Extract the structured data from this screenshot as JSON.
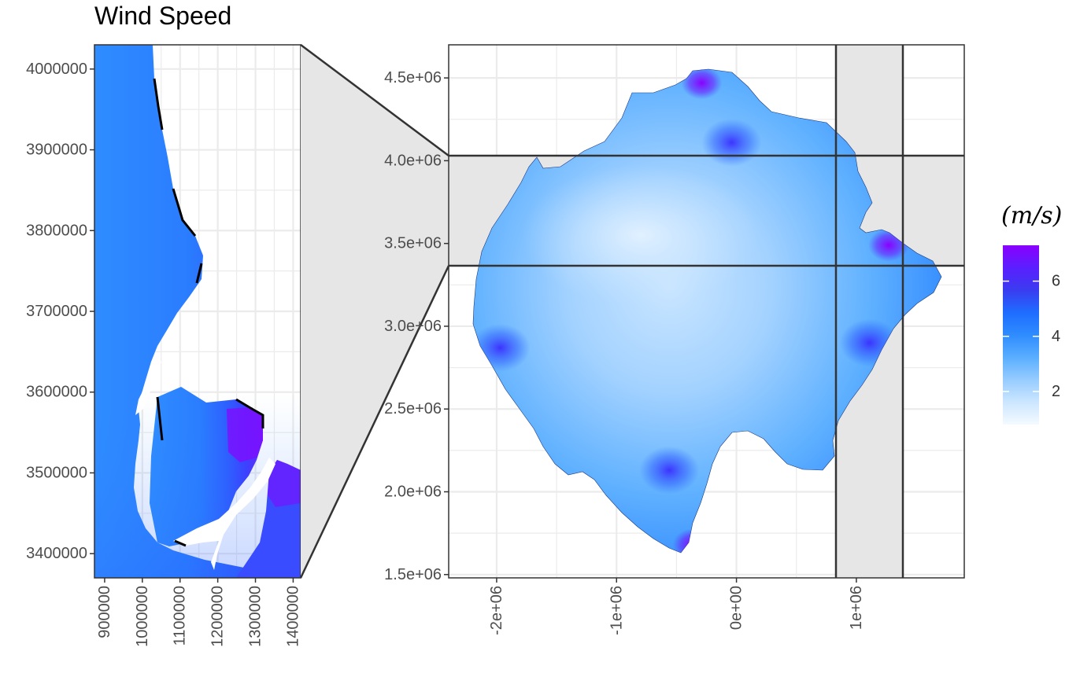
{
  "chart_data": [
    {
      "type": "heatmap",
      "title": "Wind Speed",
      "xlabel": "",
      "ylabel": "",
      "xlim": [
        873000,
        1420000
      ],
      "ylim": [
        3370000,
        4030000
      ],
      "x_ticks": [
        900000,
        1000000,
        1100000,
        1200000,
        1300000,
        1400000
      ],
      "x_tick_labels": [
        "900000",
        "1000000",
        "1100000",
        "1200000",
        "1300000",
        "1400000"
      ],
      "y_ticks": [
        3400000,
        3500000,
        3600000,
        3700000,
        3800000,
        3900000,
        4000000
      ],
      "y_tick_labels": [
        "3400000",
        "3500000",
        "3600000",
        "3700000",
        "3800000",
        "3900000",
        "4000000"
      ],
      "grid": true,
      "note_visible": "zoomed inset of the main map"
    },
    {
      "type": "heatmap",
      "xlabel": "",
      "ylabel": "",
      "xlim": [
        -2400000,
        1900000
      ],
      "ylim": [
        1480000,
        4700000
      ],
      "x_ticks": [
        -2000000,
        -1000000,
        0,
        1000000
      ],
      "x_tick_labels": [
        "-2e+06",
        "-1e+06",
        "0e+00",
        "1e+06"
      ],
      "y_ticks": [
        1500000,
        2000000,
        2500000,
        3000000,
        3500000,
        4000000,
        4500000
      ],
      "y_tick_labels": [
        "1.5e+06",
        "2.0e+06",
        "2.5e+06",
        "3.0e+06",
        "3.5e+06",
        "4.0e+06",
        "4.5e+06"
      ],
      "grid": true,
      "zoom_box": {
        "x": [
          873000,
          1420000
        ],
        "y": [
          3370000,
          4030000
        ]
      },
      "hotspots": [
        {
          "x": -560000,
          "y": 2130000,
          "value": 4.5
        },
        {
          "x": -40000,
          "y": 4110000,
          "value": 4.6
        },
        {
          "x": 1110000,
          "y": 2900000,
          "value": 4.2
        },
        {
          "x": -1970000,
          "y": 2870000,
          "value": 4.3
        },
        {
          "x": 1270000,
          "y": 3490000,
          "value": 6.5
        },
        {
          "x": -360000,
          "y": 1680000,
          "value": 5.5
        },
        {
          "x": -290000,
          "y": 4470000,
          "value": 5.5
        }
      ],
      "calm_area": {
        "x": -800000,
        "y": 3550000,
        "value": 1.3
      }
    }
  ],
  "legend": {
    "title": "(m/s)",
    "ticks": [
      2,
      4,
      6
    ],
    "tick_labels": [
      "2",
      "4",
      "6"
    ],
    "min": 0.8,
    "max": 7.3,
    "colors": [
      "#f4faff",
      "#cce6ff",
      "#96ccff",
      "#5aaeff",
      "#2f8cff",
      "#1e6dff",
      "#3a3cf0",
      "#5a1fff",
      "#8a00ff"
    ]
  },
  "colors": {
    "panel_background": "#ffffff",
    "grid": "#ebebeb",
    "panel_border": "#333333",
    "zoom_fill": "#e6e6e6",
    "coast_black": "#000000"
  }
}
